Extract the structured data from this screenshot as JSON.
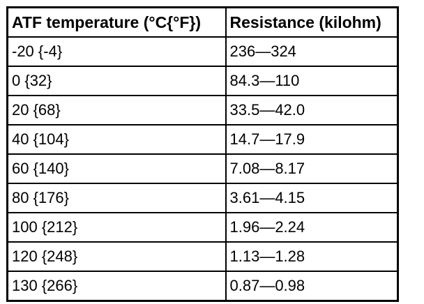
{
  "chart_data": {
    "type": "table",
    "columns": [
      "ATF temperature (°C{°F})",
      "Resistance (kilohm)"
    ],
    "rows": [
      [
        "-20 {-4}",
        "236—324"
      ],
      [
        "0 {32}",
        "84.3—110"
      ],
      [
        "20 {68}",
        "33.5—42.0"
      ],
      [
        "40 {104}",
        "14.7—17.9"
      ],
      [
        "60 {140}",
        "7.08—8.17"
      ],
      [
        "80 {176}",
        "3.61—4.15"
      ],
      [
        "100 {212}",
        "1.96—2.24"
      ],
      [
        "120 {248}",
        "1.13—1.28"
      ],
      [
        "130 {266}",
        "0.87—0.98"
      ]
    ]
  },
  "colors": {
    "border": "#000000",
    "background": "#ffffff",
    "text": "#000000"
  }
}
